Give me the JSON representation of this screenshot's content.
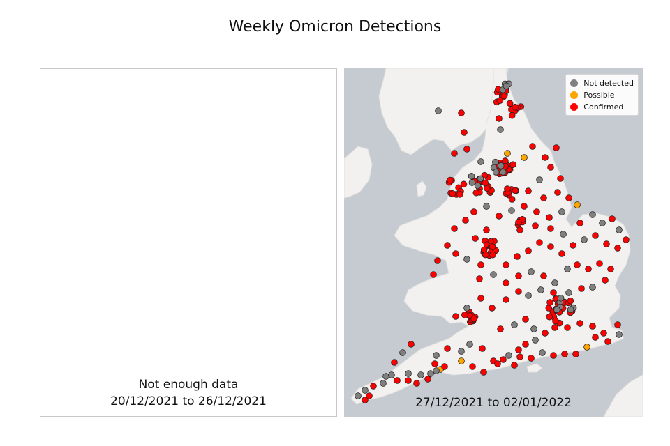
{
  "figure": {
    "title": "Weekly Omicron Detections"
  },
  "left_panel": {
    "status": "Not enough data",
    "date_range": "20/12/2021 to 26/12/2021"
  },
  "right_panel": {
    "date_range": "27/12/2021 to 02/01/2022",
    "legend": [
      {
        "label": "Not detected",
        "color": "#808080"
      },
      {
        "label": "Possible",
        "color": "#ffa500"
      },
      {
        "label": "Confirmed",
        "color": "#ff0000"
      }
    ]
  },
  "colors": {
    "sea": "#c5cbd0",
    "land": "#f2f1ef",
    "marker_border": "#222222"
  }
}
